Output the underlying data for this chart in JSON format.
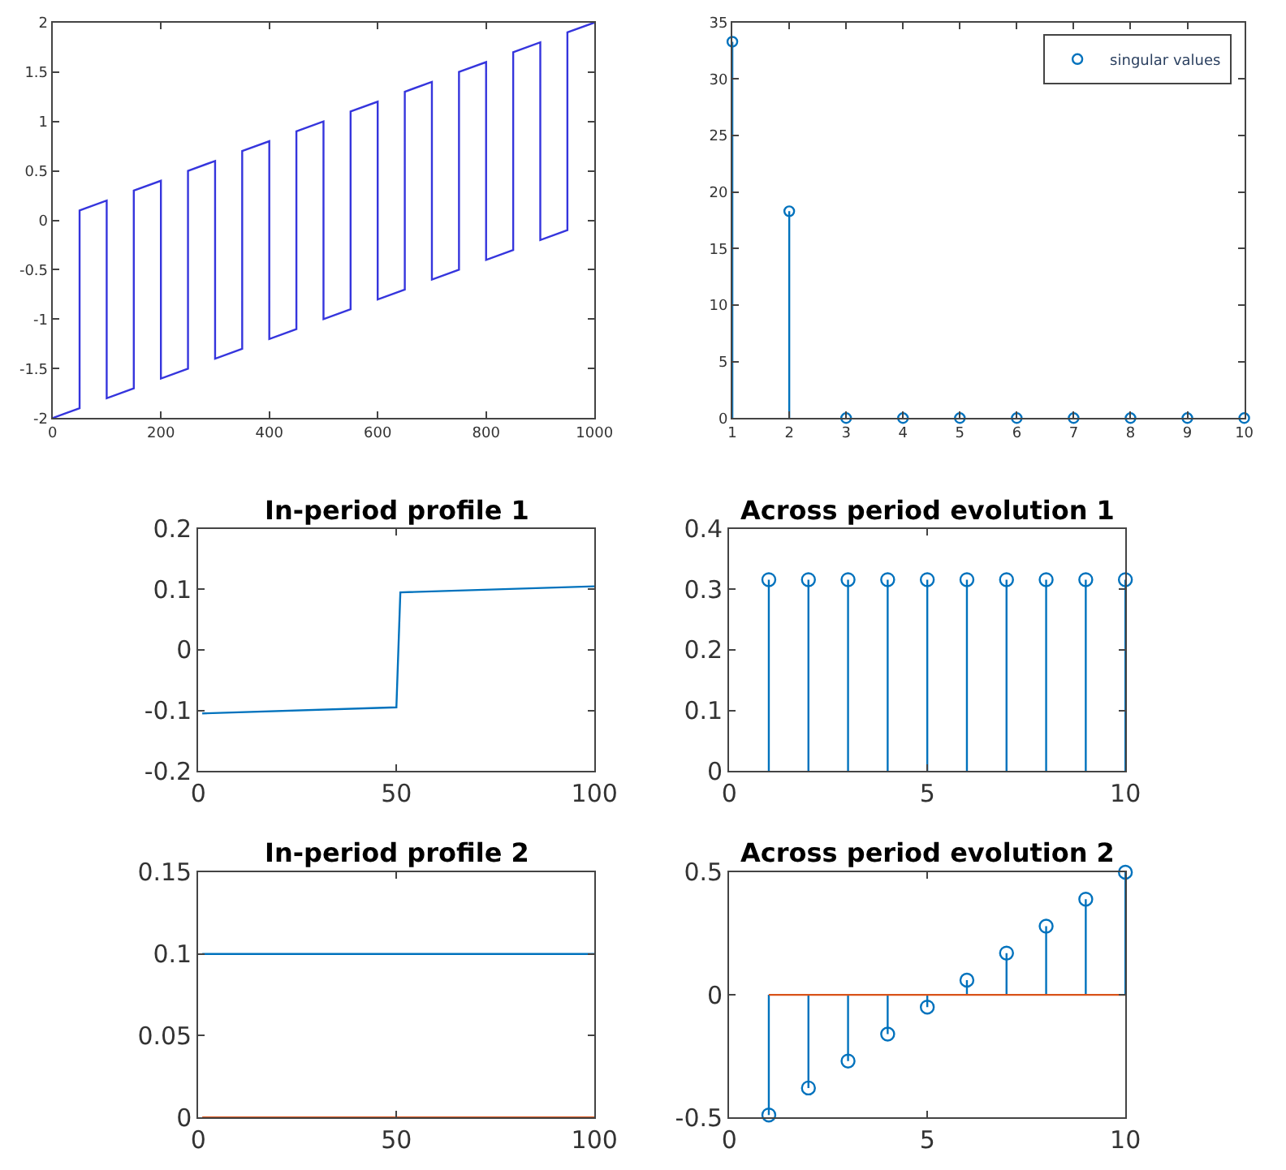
{
  "chart_data": [
    {
      "type": "line",
      "xlim": [
        0,
        1000
      ],
      "ylim": [
        -2,
        2
      ],
      "xticks": [
        0,
        200,
        400,
        600,
        800,
        1000
      ],
      "yticks": [
        -2,
        -1.5,
        -1,
        -0.5,
        0,
        0.5,
        1,
        1.5,
        2
      ],
      "grid": false,
      "legend": false,
      "series": [
        {
          "color": "#3535dd",
          "x": [
            0,
            50,
            50,
            100,
            100,
            150,
            150,
            200,
            200,
            250,
            250,
            300,
            300,
            350,
            350,
            400,
            400,
            450,
            450,
            500,
            500,
            550,
            550,
            600,
            600,
            650,
            650,
            700,
            700,
            750,
            750,
            800,
            800,
            850,
            850,
            900,
            900,
            950,
            950,
            1000
          ],
          "values": [
            -2,
            -1.9,
            0.1,
            0.2,
            -1.8,
            -1.7,
            0.3,
            0.4,
            -1.6,
            -1.5,
            0.5,
            0.6,
            -1.4,
            -1.3,
            0.7,
            0.8,
            -1.2,
            -1.1,
            0.9,
            1.0,
            -1.0,
            -0.9,
            1.1,
            1.2,
            -0.8,
            -0.7,
            1.3,
            1.4,
            -0.6,
            -0.5,
            1.5,
            1.6,
            -0.4,
            -0.3,
            1.7,
            1.8,
            -0.2,
            -0.1,
            1.9,
            2.0
          ]
        }
      ]
    },
    {
      "type": "lollipop",
      "xlim": [
        1,
        10
      ],
      "ylim": [
        0,
        35
      ],
      "xticks": [
        1,
        2,
        3,
        4,
        5,
        6,
        7,
        8,
        9,
        10
      ],
      "yticks": [
        0,
        5,
        10,
        15,
        20,
        25,
        30,
        35
      ],
      "marker": "circle",
      "grid": false,
      "legend": "top right",
      "series": [
        {
          "name": "singular values",
          "color": "#0072bd",
          "x": [
            1,
            2,
            3,
            4,
            5,
            6,
            7,
            8,
            9,
            10
          ],
          "values": [
            33.3,
            18.3,
            0,
            0,
            0,
            0,
            0,
            0,
            0,
            0
          ]
        }
      ]
    },
    {
      "type": "line",
      "title": "In-period profile 1",
      "xlim": [
        0,
        100
      ],
      "ylim": [
        -0.2,
        0.2
      ],
      "xticks": [
        0,
        50,
        100
      ],
      "yticks": [
        -0.2,
        -0.1,
        0,
        0.1,
        0.2
      ],
      "grid": false,
      "legend": false,
      "series": [
        {
          "color": "#0072bd",
          "x": [
            1,
            50,
            51,
            100
          ],
          "values": [
            -0.105,
            -0.095,
            0.095,
            0.105
          ]
        }
      ]
    },
    {
      "type": "lollipop",
      "title": "Across period evolution 1",
      "xlim": [
        0,
        10
      ],
      "ylim": [
        0,
        0.4
      ],
      "xticks": [
        0,
        5,
        10
      ],
      "yticks": [
        0,
        0.1,
        0.2,
        0.3,
        0.4
      ],
      "marker": "circle",
      "grid": false,
      "legend": false,
      "series": [
        {
          "color": "#0072bd",
          "x": [
            1,
            2,
            3,
            4,
            5,
            6,
            7,
            8,
            9,
            10
          ],
          "values": [
            0.316,
            0.316,
            0.316,
            0.316,
            0.316,
            0.316,
            0.316,
            0.316,
            0.316,
            0.316
          ]
        }
      ]
    },
    {
      "type": "line",
      "title": "In-period profile 2",
      "xlim": [
        0,
        100
      ],
      "ylim": [
        0,
        0.15
      ],
      "xticks": [
        0,
        50,
        100
      ],
      "yticks": [
        0,
        0.05,
        0.1,
        0.15
      ],
      "grid": false,
      "legend": false,
      "series": [
        {
          "color": "#0072bd",
          "x": [
            1,
            100
          ],
          "values": [
            0.1,
            0.1
          ]
        },
        {
          "color": "#d95319",
          "x": [
            1,
            100
          ],
          "values": [
            0,
            0
          ]
        }
      ]
    },
    {
      "type": "lollipop",
      "title": "Across period evolution 2",
      "xlim": [
        0,
        10
      ],
      "ylim": [
        -0.5,
        0.5
      ],
      "xticks": [
        0,
        5,
        10
      ],
      "yticks": [
        -0.5,
        0,
        0.5
      ],
      "marker": "circle",
      "grid": false,
      "legend": false,
      "series": [
        {
          "color": "#0072bd",
          "x": [
            1,
            2,
            3,
            4,
            5,
            6,
            7,
            8,
            9,
            10
          ],
          "values": [
            -0.49,
            -0.38,
            -0.27,
            -0.16,
            -0.05,
            0.06,
            0.17,
            0.28,
            0.39,
            0.5
          ]
        },
        {
          "type": "line",
          "marker": "none",
          "color": "#d95319",
          "x": [
            1,
            10
          ],
          "values": [
            0,
            0
          ]
        }
      ]
    }
  ]
}
